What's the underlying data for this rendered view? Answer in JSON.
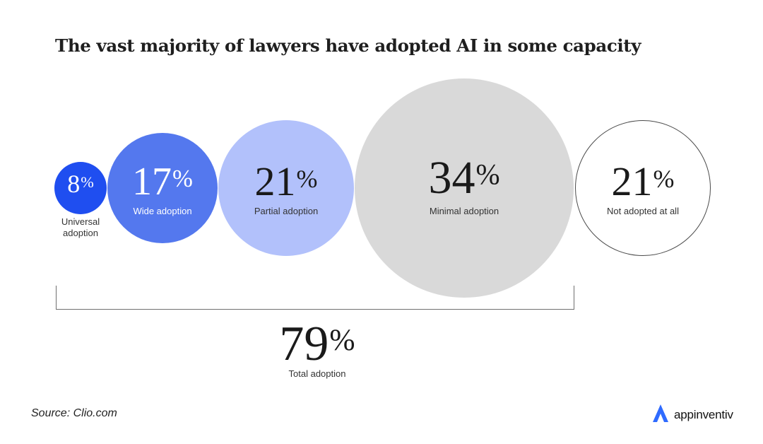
{
  "title": "The vast majority of lawyers have adopted AI in some capacity",
  "chart_data": {
    "type": "bubble",
    "title": "The vast majority of lawyers have adopted AI in some capacity",
    "categories": [
      "Universal adoption",
      "Wide adoption",
      "Partial adoption",
      "Minimal adoption",
      "Not adopted at all"
    ],
    "values": [
      8,
      17,
      21,
      34,
      21
    ],
    "value_labels": [
      "8",
      "17",
      "21",
      "34",
      "21"
    ],
    "unit": "%",
    "colors": [
      "#1f4ef0",
      "#5478ee",
      "#b2c1fb",
      "#d9d9d9",
      "#ffffff"
    ],
    "total": {
      "value_label": "79",
      "label": "Total adoption"
    }
  },
  "source": "Source: Clio.com",
  "brand": {
    "name": "appinventiv",
    "icon": "appinventiv-logo-icon",
    "color": "#2f6bff"
  }
}
